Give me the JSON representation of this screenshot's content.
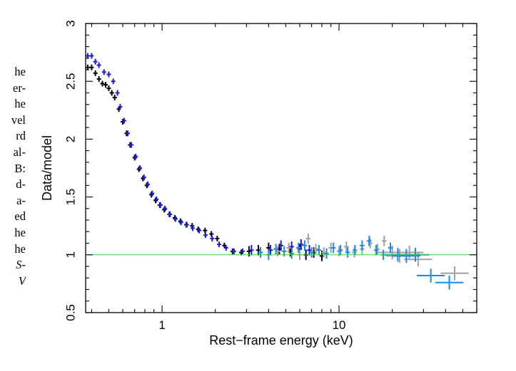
{
  "page_text_fragments": [
    "he",
    "er-",
    "he",
    "vel",
    "rd",
    "al-",
    "B:",
    "d-",
    "a-",
    "ed",
    "he",
    "he",
    "S-",
    "V"
  ],
  "chart_data": {
    "type": "scatter",
    "title": "",
    "xlabel": "Rest−frame energy (keV)",
    "ylabel": "Data/model",
    "xscale": "log",
    "xlim": [
      0.37,
      60
    ],
    "ylim": [
      0.5,
      3
    ],
    "xticks_major": [
      1,
      10
    ],
    "xtick_labels": [
      "1",
      "10"
    ],
    "yticks_major": [
      0.5,
      1,
      1.5,
      2,
      2.5,
      3
    ],
    "ytick_labels": [
      "0.5",
      "1",
      "1.5",
      "2",
      "2.5",
      "3"
    ],
    "grid": false,
    "legend": "none",
    "reference_line": {
      "y": 1,
      "color": "#3cd43c"
    },
    "series": [
      {
        "color": "#000000",
        "points": [
          [
            0.38,
            2.62
          ],
          [
            0.4,
            2.62
          ],
          [
            0.42,
            2.57
          ],
          [
            0.44,
            2.52
          ],
          [
            0.46,
            2.48
          ],
          [
            0.48,
            2.47
          ],
          [
            0.5,
            2.44
          ],
          [
            0.52,
            2.4
          ],
          [
            0.54,
            2.36
          ],
          [
            0.57,
            2.26
          ],
          [
            0.6,
            2.15
          ],
          [
            0.63,
            2.05
          ],
          [
            0.66,
            1.95
          ],
          [
            0.7,
            1.84
          ],
          [
            0.74,
            1.74
          ],
          [
            0.78,
            1.66
          ],
          [
            0.82,
            1.6
          ],
          [
            0.87,
            1.52
          ],
          [
            0.92,
            1.47
          ],
          [
            0.97,
            1.43
          ],
          [
            1.03,
            1.39
          ],
          [
            1.1,
            1.35
          ],
          [
            1.18,
            1.32
          ],
          [
            1.27,
            1.29
          ],
          [
            1.37,
            1.26
          ],
          [
            1.48,
            1.25
          ],
          [
            1.6,
            1.22
          ],
          [
            1.75,
            1.21
          ],
          [
            1.9,
            1.18
          ],
          [
            2.05,
            1.14
          ],
          [
            2.25,
            1.08
          ],
          [
            2.5,
            1.03
          ],
          [
            2.8,
            1.02
          ],
          [
            3.1,
            1.03
          ],
          [
            3.5,
            1.04
          ],
          [
            4.0,
            1.06
          ],
          [
            4.6,
            1.05
          ],
          [
            5.3,
            1.03
          ],
          [
            6.0,
            1.05
          ],
          [
            6.5,
            1.0
          ],
          [
            7.2,
            1.02
          ],
          [
            8.0,
            0.99
          ]
        ]
      },
      {
        "color": "#1a1ad8",
        "points": [
          [
            0.38,
            2.72
          ],
          [
            0.4,
            2.72
          ],
          [
            0.42,
            2.67
          ],
          [
            0.44,
            2.64
          ],
          [
            0.47,
            2.58
          ],
          [
            0.5,
            2.56
          ],
          [
            0.53,
            2.5
          ],
          [
            0.56,
            2.4
          ],
          [
            0.58,
            2.28
          ],
          [
            0.61,
            2.16
          ],
          [
            0.64,
            2.05
          ],
          [
            0.67,
            1.95
          ],
          [
            0.71,
            1.85
          ],
          [
            0.75,
            1.75
          ],
          [
            0.79,
            1.67
          ],
          [
            0.83,
            1.61
          ],
          [
            0.88,
            1.53
          ],
          [
            0.93,
            1.48
          ],
          [
            0.98,
            1.43
          ],
          [
            1.04,
            1.4
          ],
          [
            1.11,
            1.35
          ],
          [
            1.19,
            1.31
          ],
          [
            1.28,
            1.28
          ],
          [
            1.38,
            1.26
          ],
          [
            1.49,
            1.23
          ],
          [
            1.62,
            1.21
          ],
          [
            1.76,
            1.17
          ],
          [
            1.92,
            1.14
          ],
          [
            2.1,
            1.09
          ],
          [
            2.3,
            1.06
          ],
          [
            2.55,
            1.03
          ],
          [
            2.85,
            1.03
          ],
          [
            3.2,
            1.04
          ],
          [
            3.6,
            1.02
          ],
          [
            4.1,
            1.04
          ],
          [
            4.7,
            1.08
          ],
          [
            5.4,
            1.07
          ],
          [
            6.1,
            1.09
          ],
          [
            6.8,
            1.04
          ]
        ]
      },
      {
        "color": "#a0a0a0",
        "points": [
          [
            4.5,
            1.03
          ],
          [
            5.2,
            1.06
          ],
          [
            6.0,
            1.0
          ],
          [
            6.7,
            1.14
          ],
          [
            7.4,
            1.05
          ],
          [
            8.2,
            1.02
          ],
          [
            9.0,
            1.06
          ],
          [
            10.0,
            1.03
          ],
          [
            11.0,
            1.07
          ],
          [
            12.2,
            1.02
          ],
          [
            13.5,
            1.05
          ],
          [
            15.0,
            1.1
          ],
          [
            16.5,
            1.05
          ],
          [
            18.0,
            1.12
          ],
          [
            20.0,
            1.02
          ],
          [
            22.0,
            0.99
          ],
          [
            25.0,
            1.02
          ],
          [
            28.0,
            0.96
          ],
          [
            45.0,
            0.84
          ]
        ]
      },
      {
        "color": "#1a8ae0",
        "points": [
          [
            3.6,
            1.02
          ],
          [
            4.0,
            1.0
          ],
          [
            4.4,
            1.05
          ],
          [
            4.9,
            1.03
          ],
          [
            5.4,
            1.01
          ],
          [
            5.9,
            1.06
          ],
          [
            6.4,
            1.08
          ],
          [
            7.0,
            1.02
          ],
          [
            7.7,
            1.04
          ],
          [
            8.5,
            1.01
          ],
          [
            9.3,
            1.06
          ],
          [
            10.2,
            1.04
          ],
          [
            11.2,
            1.02
          ],
          [
            12.3,
            1.04
          ],
          [
            13.5,
            1.08
          ],
          [
            14.8,
            1.12
          ],
          [
            16.2,
            1.04
          ],
          [
            17.8,
            1.0
          ],
          [
            19.5,
            1.06
          ],
          [
            21.5,
            1.0
          ],
          [
            24.0,
            0.99
          ],
          [
            27.0,
            1.0
          ],
          [
            33.0,
            0.82
          ],
          [
            42.0,
            0.76
          ]
        ]
      }
    ]
  }
}
